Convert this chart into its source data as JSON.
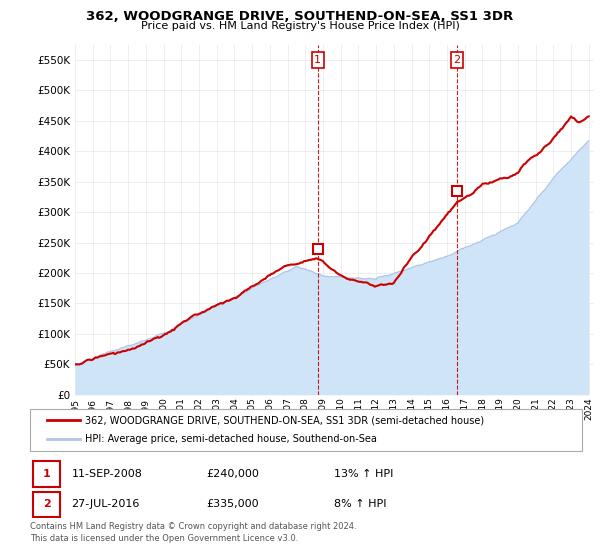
{
  "title": "362, WOODGRANGE DRIVE, SOUTHEND-ON-SEA, SS1 3DR",
  "subtitle": "Price paid vs. HM Land Registry's House Price Index (HPI)",
  "legend_line1": "362, WOODGRANGE DRIVE, SOUTHEND-ON-SEA, SS1 3DR (semi-detached house)",
  "legend_line2": "HPI: Average price, semi-detached house, Southend-on-Sea",
  "footnote": "Contains HM Land Registry data © Crown copyright and database right 2024.\nThis data is licensed under the Open Government Licence v3.0.",
  "hpi_color": "#aec6e8",
  "hpi_fill_color": "#d0e4f7",
  "price_color": "#cc0000",
  "grid_color": "#e8e8e8",
  "bg_color": "#ffffff",
  "box_color": "#cc0000",
  "p1_year": 2008.708,
  "p1_price": 240000,
  "p1_date": "11-SEP-2008",
  "p1_pct": "13%",
  "p2_year": 2016.558,
  "p2_price": 335000,
  "p2_date": "27-JUL-2016",
  "p2_pct": "8%",
  "hpi_keypoints_x": [
    1995,
    2000,
    2005,
    2007.5,
    2009,
    2012,
    2016,
    2020,
    2022.5,
    2024
  ],
  "hpi_keypoints_y": [
    47000,
    95000,
    175000,
    215000,
    200000,
    195000,
    240000,
    290000,
    375000,
    420000
  ],
  "price_keypoints_x": [
    1995,
    1997,
    2000,
    2005,
    2007,
    2008.708,
    2010,
    2012,
    2013,
    2016.558,
    2018,
    2020,
    2022,
    2023,
    2023.5,
    2024
  ],
  "price_keypoints_y": [
    50000,
    70000,
    100000,
    185000,
    220000,
    240000,
    215000,
    200000,
    210000,
    335000,
    360000,
    380000,
    430000,
    470000,
    455000,
    465000
  ],
  "ylim": [
    0,
    575000
  ],
  "yticks": [
    0,
    50000,
    100000,
    150000,
    200000,
    250000,
    300000,
    350000,
    400000,
    450000,
    500000,
    550000
  ],
  "xlim_start": 1995,
  "xlim_end": 2024.3
}
